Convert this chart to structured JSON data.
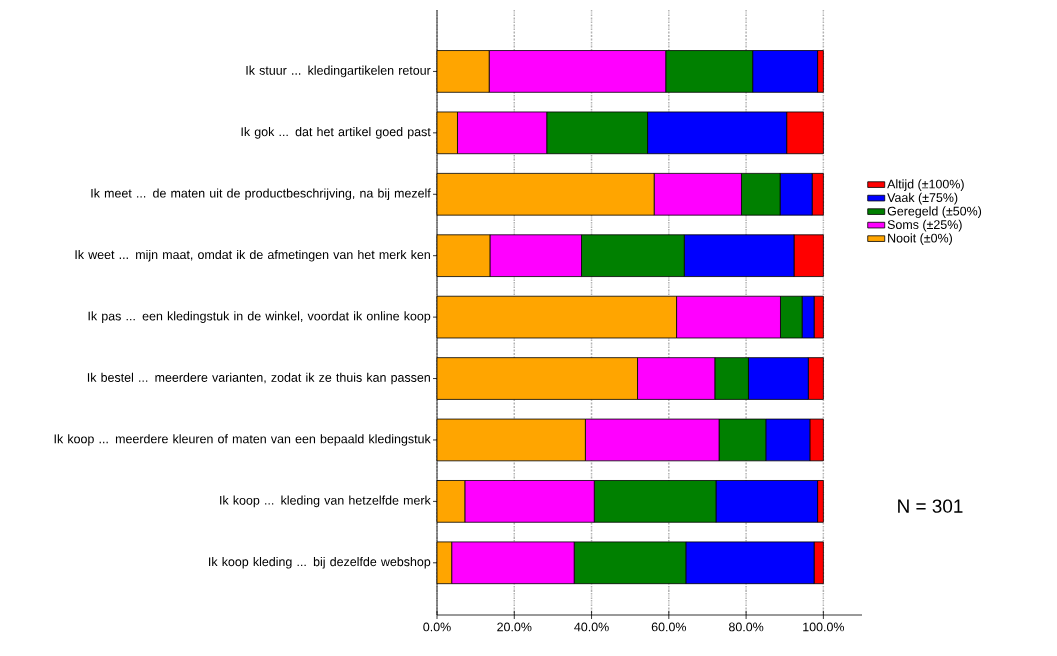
{
  "chart_data": {
    "type": "bar",
    "orientation": "horizontal",
    "stacked": true,
    "categories": [
      "Ik stuur ... kledingartikelen retour",
      "Ik gok ... dat het artikel goed past",
      "Ik meet ... de maten uit de productbeschrijving, na bij mezelf",
      "Ik weet ... mijn maat, omdat ik de afmetingen van het merk ken",
      "Ik pas ... een kledingstuk in de winkel, voordat ik online koop",
      "Ik bestel ... meerdere varianten, zodat ik ze thuis kan passen",
      "Ik koop ... meerdere kleuren of maten van een bepaald kledingstuk",
      "Ik koop ... kleding van hetzelfde merk",
      "Ik koop kleding ... bij dezelfde webshop"
    ],
    "series": [
      {
        "name": "Nooit (±0%)",
        "color": "#ffa500",
        "values": [
          13.5,
          5.3,
          56.2,
          13.7,
          62.0,
          51.9,
          38.4,
          7.2,
          3.8
        ]
      },
      {
        "name": "Soms (±25%)",
        "color": "#ff00ff",
        "values": [
          45.7,
          23.1,
          22.6,
          23.7,
          26.9,
          20.0,
          34.6,
          33.5,
          31.7
        ]
      },
      {
        "name": "Geregeld (±50%)",
        "color": "#008000",
        "values": [
          22.5,
          26.1,
          10.0,
          26.6,
          5.6,
          8.7,
          12.1,
          31.5,
          28.9
        ]
      },
      {
        "name": "Vaak (±75%)",
        "color": "#0000ff",
        "values": [
          16.8,
          36.0,
          8.3,
          28.4,
          3.1,
          15.5,
          11.4,
          26.3,
          33.2
        ]
      },
      {
        "name": "Altijd (±100%)",
        "color": "#ff0000",
        "values": [
          1.5,
          9.5,
          2.9,
          7.6,
          2.4,
          3.9,
          3.5,
          1.5,
          2.4
        ]
      }
    ],
    "xlim": [
      0,
      110
    ],
    "xticks": [
      {
        "value": 0,
        "label": "0.0%"
      },
      {
        "value": 20,
        "label": "20.0%"
      },
      {
        "value": 40,
        "label": "40.0%"
      },
      {
        "value": 60,
        "label": "60.0%"
      },
      {
        "value": 80,
        "label": "80.0%"
      },
      {
        "value": 100,
        "label": "100.0%"
      }
    ],
    "grid": "x",
    "legend": "right",
    "annotations": [
      "N = 301"
    ]
  }
}
